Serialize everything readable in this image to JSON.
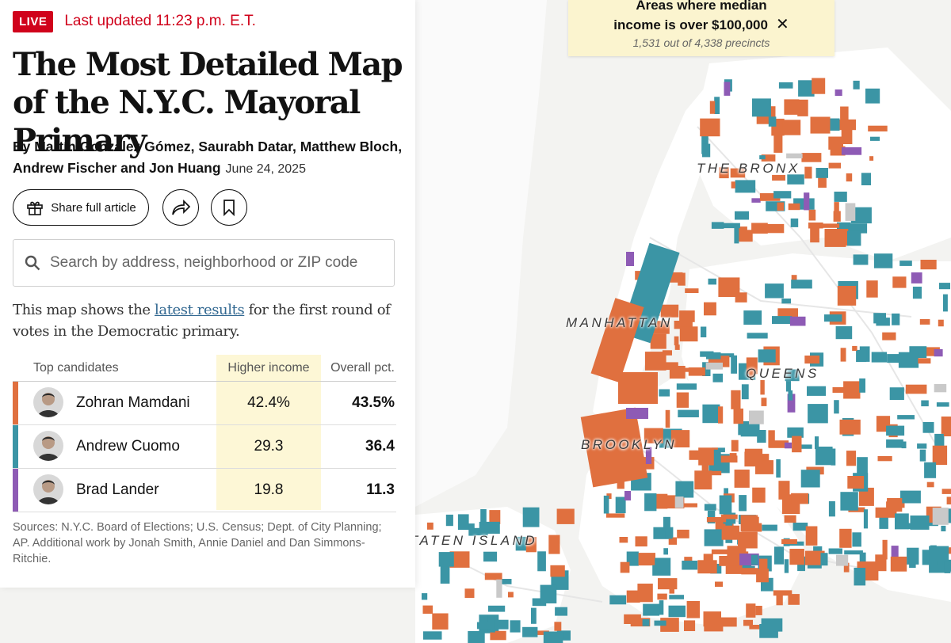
{
  "header": {
    "live_badge": "LIVE",
    "last_updated": "Last updated 11:23 p.m. E.T."
  },
  "article": {
    "title": "The Most Detailed Map of the N.Y.C. Mayoral Primary",
    "byline": "By Martín González Gómez, Saurabh Datar, Matthew Bloch, Andrew Fischer and Jon Huang",
    "date": "June 24, 2025",
    "share_label": "Share full article",
    "intro_before": "This map shows the ",
    "intro_link": "latest results",
    "intro_after": " for the first round of votes in the Democratic primary.",
    "sources": "Sources: N.Y.C. Board of Elections; U.S. Census; Dept. of City Planning; AP.  Additional work by Jonah Smith, Annie Daniel and Dan Simmons-Ritchie."
  },
  "search": {
    "placeholder": "Search by address, neighborhood or ZIP code"
  },
  "table": {
    "col_candidates": "Top candidates",
    "col_higher": "Higher income",
    "col_overall": "Overall pct.",
    "rows": [
      {
        "name": "Zohran Mamdani",
        "higher": "42.4%",
        "overall": "43.5%",
        "color": "#e0703f"
      },
      {
        "name": "Andrew Cuomo",
        "higher": "29.3",
        "overall": "36.4",
        "color": "#3b95a5"
      },
      {
        "name": "Brad Lander",
        "higher": "19.8",
        "overall": "11.3",
        "color": "#8e5bb5"
      }
    ]
  },
  "filter_chip": {
    "line1": "Areas where median",
    "line2": "income is over $100,000",
    "close_icon": "close-icon",
    "subtitle": "1,531 out of 4,338 precincts"
  },
  "map": {
    "labels": {
      "bronx": "THE BRONX",
      "manhattan": "MANHATTAN",
      "queens": "QUEENS",
      "brooklyn": "BROOKLYN",
      "staten_island": "STATEN ISLAND"
    },
    "colors": {
      "water": "#f3f3f1",
      "land": "#ffffff",
      "mamdani": "#e0703f",
      "cuomo": "#3b95a5",
      "lander": "#8e5bb5",
      "nodata": "#c9c9c9"
    }
  }
}
